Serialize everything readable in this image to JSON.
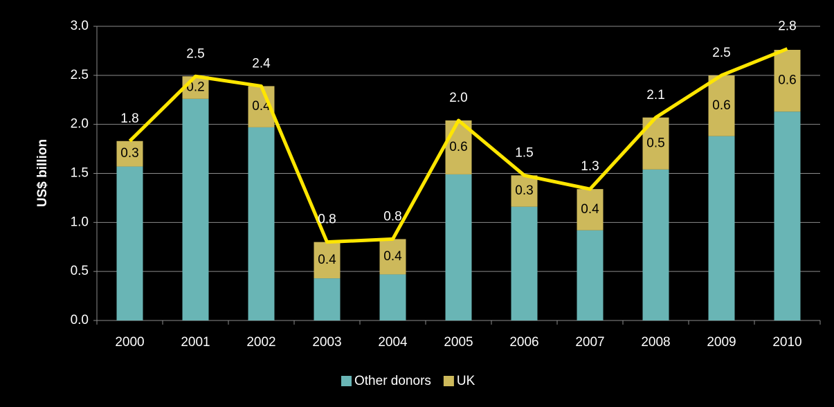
{
  "chart_data": {
    "type": "bar",
    "stacked": true,
    "ylabel": "US$ billion",
    "categories": [
      "2000",
      "2001",
      "2002",
      "2003",
      "2004",
      "2005",
      "2006",
      "2007",
      "2008",
      "2009",
      "2010"
    ],
    "series": [
      {
        "name": "Other donors",
        "color": "#69b5b5",
        "values": [
          1.57,
          2.26,
          1.97,
          0.43,
          0.47,
          1.49,
          1.16,
          0.92,
          1.54,
          1.88,
          2.13
        ]
      },
      {
        "name": "UK",
        "color": "#cdb95b",
        "values": [
          0.26,
          0.23,
          0.42,
          0.37,
          0.36,
          0.55,
          0.32,
          0.42,
          0.53,
          0.62,
          0.63
        ],
        "value_labels": [
          "0.3",
          "0.2",
          "0.4",
          "0.4",
          "0.4",
          "0.6",
          "0.3",
          "0.4",
          "0.5",
          "0.6",
          "0.6"
        ]
      }
    ],
    "total_line": {
      "color": "#ffe600",
      "values": [
        1.83,
        2.49,
        2.39,
        0.8,
        0.83,
        2.04,
        1.48,
        1.34,
        2.07,
        2.5,
        2.77
      ],
      "value_labels": [
        "1.8",
        "2.5",
        "2.4",
        "0.8",
        "0.8",
        "2.0",
        "1.5",
        "1.3",
        "2.1",
        "2.5",
        "2.8"
      ]
    },
    "ylim": [
      0,
      3
    ],
    "yticks": [
      {
        "value": 0,
        "label": "0.0"
      },
      {
        "value": 0.5,
        "label": "0.5"
      },
      {
        "value": 1,
        "label": "1.0"
      },
      {
        "value": 1.5,
        "label": "1.5"
      },
      {
        "value": 2,
        "label": "2.0"
      },
      {
        "value": 2.5,
        "label": "2.5"
      },
      {
        "value": 3,
        "label": "3.0"
      }
    ],
    "grid": true,
    "legend": "bottom"
  }
}
